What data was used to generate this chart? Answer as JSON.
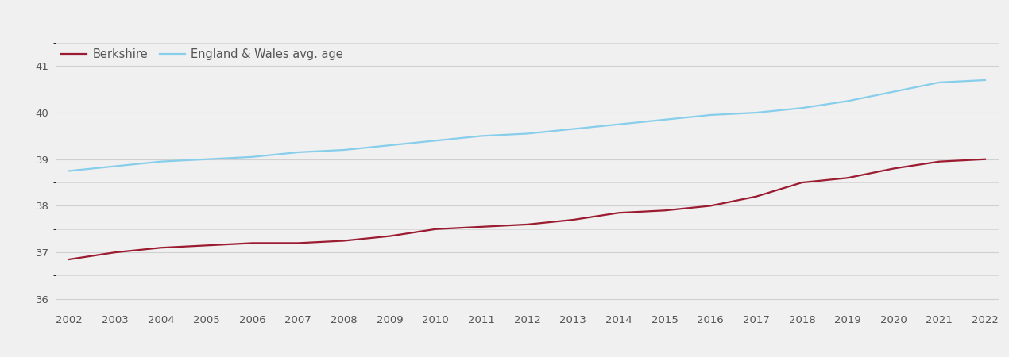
{
  "years": [
    2002,
    2003,
    2004,
    2005,
    2006,
    2007,
    2008,
    2009,
    2010,
    2011,
    2012,
    2013,
    2014,
    2015,
    2016,
    2017,
    2018,
    2019,
    2020,
    2021,
    2022
  ],
  "berkshire": [
    36.85,
    37.0,
    37.1,
    37.15,
    37.2,
    37.2,
    37.25,
    37.35,
    37.5,
    37.55,
    37.6,
    37.7,
    37.85,
    37.9,
    38.0,
    38.2,
    38.5,
    38.6,
    38.8,
    38.95,
    39.0
  ],
  "england_wales": [
    38.75,
    38.85,
    38.95,
    39.0,
    39.05,
    39.15,
    39.2,
    39.3,
    39.4,
    39.5,
    39.55,
    39.65,
    39.75,
    39.85,
    39.95,
    40.0,
    40.1,
    40.25,
    40.45,
    40.65,
    40.7
  ],
  "berkshire_color": "#9B1B30",
  "england_wales_color": "#87CEEB",
  "background_color": "#f0f0f0",
  "grid_color": "#d0d0d0",
  "ylim": [
    35.75,
    41.5
  ],
  "yticks": [
    36,
    37,
    38,
    39,
    40,
    41
  ],
  "legend_labels": [
    "Berkshire",
    "England & Wales avg. age"
  ],
  "line_width": 1.6,
  "tick_fontsize": 9.5,
  "legend_fontsize": 10.5
}
